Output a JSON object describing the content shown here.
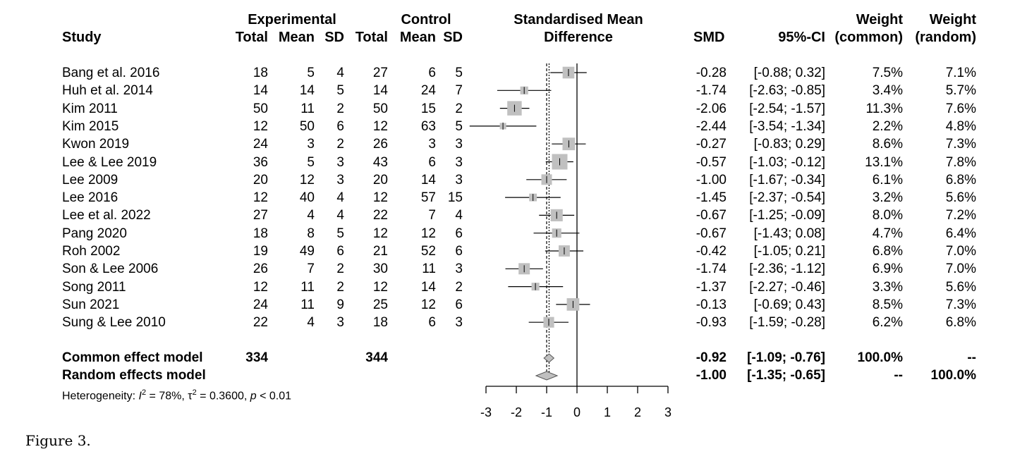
{
  "header": {
    "study": "Study",
    "experimental": "Experimental",
    "control": "Control",
    "total": "Total",
    "mean": "Mean",
    "sd": "SD",
    "plot_title_1": "Standardised Mean",
    "plot_title_2": "Difference",
    "smd": "SMD",
    "ci": "95%-CI",
    "weight": "Weight",
    "common": "(common)",
    "random": "(random)"
  },
  "studies": [
    {
      "name": "Bang et al. 2016",
      "e_total": "18",
      "e_mean": "5",
      "e_sd": "4",
      "c_total": "27",
      "c_mean": "6",
      "c_sd": "5",
      "smd": "-0.28",
      "ci": "[-0.88; 0.32]",
      "w_common": "7.5%",
      "w_random": "7.1%"
    },
    {
      "name": "Huh et al. 2014",
      "e_total": "14",
      "e_mean": "14",
      "e_sd": "5",
      "c_total": "14",
      "c_mean": "24",
      "c_sd": "7",
      "smd": "-1.74",
      "ci": "[-2.63; -0.85]",
      "w_common": "3.4%",
      "w_random": "5.7%"
    },
    {
      "name": "Kim 2011",
      "e_total": "50",
      "e_mean": "11",
      "e_sd": "2",
      "c_total": "50",
      "c_mean": "15",
      "c_sd": "2",
      "smd": "-2.06",
      "ci": "[-2.54; -1.57]",
      "w_common": "11.3%",
      "w_random": "7.6%"
    },
    {
      "name": "Kim 2015",
      "e_total": "12",
      "e_mean": "50",
      "e_sd": "6",
      "c_total": "12",
      "c_mean": "63",
      "c_sd": "5",
      "smd": "-2.44",
      "ci": "[-3.54; -1.34]",
      "w_common": "2.2%",
      "w_random": "4.8%"
    },
    {
      "name": "Kwon 2019",
      "e_total": "24",
      "e_mean": "3",
      "e_sd": "2",
      "c_total": "26",
      "c_mean": "3",
      "c_sd": "3",
      "smd": "-0.27",
      "ci": "[-0.83; 0.29]",
      "w_common": "8.6%",
      "w_random": "7.3%"
    },
    {
      "name": "Lee & Lee 2019",
      "e_total": "36",
      "e_mean": "5",
      "e_sd": "3",
      "c_total": "43",
      "c_mean": "6",
      "c_sd": "3",
      "smd": "-0.57",
      "ci": "[-1.03; -0.12]",
      "w_common": "13.1%",
      "w_random": "7.8%"
    },
    {
      "name": "Lee 2009",
      "e_total": "20",
      "e_mean": "12",
      "e_sd": "3",
      "c_total": "20",
      "c_mean": "14",
      "c_sd": "3",
      "smd": "-1.00",
      "ci": "[-1.67; -0.34]",
      "w_common": "6.1%",
      "w_random": "6.8%"
    },
    {
      "name": "Lee 2016",
      "e_total": "12",
      "e_mean": "40",
      "e_sd": "4",
      "c_total": "12",
      "c_mean": "57",
      "c_sd": "15",
      "smd": "-1.45",
      "ci": "[-2.37; -0.54]",
      "w_common": "3.2%",
      "w_random": "5.6%"
    },
    {
      "name": "Lee et al. 2022",
      "e_total": "27",
      "e_mean": "4",
      "e_sd": "4",
      "c_total": "22",
      "c_mean": "7",
      "c_sd": "4",
      "smd": "-0.67",
      "ci": "[-1.25; -0.09]",
      "w_common": "8.0%",
      "w_random": "7.2%"
    },
    {
      "name": "Pang 2020",
      "e_total": "18",
      "e_mean": "8",
      "e_sd": "5",
      "c_total": "12",
      "c_mean": "12",
      "c_sd": "6",
      "smd": "-0.67",
      "ci": "[-1.43; 0.08]",
      "w_common": "4.7%",
      "w_random": "6.4%"
    },
    {
      "name": "Roh 2002",
      "e_total": "19",
      "e_mean": "49",
      "e_sd": "6",
      "c_total": "21",
      "c_mean": "52",
      "c_sd": "6",
      "smd": "-0.42",
      "ci": "[-1.05; 0.21]",
      "w_common": "6.8%",
      "w_random": "7.0%"
    },
    {
      "name": "Son & Lee 2006",
      "e_total": "26",
      "e_mean": "7",
      "e_sd": "2",
      "c_total": "30",
      "c_mean": "11",
      "c_sd": "3",
      "smd": "-1.74",
      "ci": "[-2.36; -1.12]",
      "w_common": "6.9%",
      "w_random": "7.0%"
    },
    {
      "name": "Song 2011",
      "e_total": "12",
      "e_mean": "11",
      "e_sd": "2",
      "c_total": "12",
      "c_mean": "14",
      "c_sd": "2",
      "smd": "-1.37",
      "ci": "[-2.27; -0.46]",
      "w_common": "3.3%",
      "w_random": "5.6%"
    },
    {
      "name": "Sun 2021",
      "e_total": "24",
      "e_mean": "11",
      "e_sd": "9",
      "c_total": "25",
      "c_mean": "12",
      "c_sd": "6",
      "smd": "-0.13",
      "ci": "[-0.69; 0.43]",
      "w_common": "8.5%",
      "w_random": "7.3%"
    },
    {
      "name": "Sung & Lee 2010",
      "e_total": "22",
      "e_mean": "4",
      "e_sd": "3",
      "c_total": "18",
      "c_mean": "6",
      "c_sd": "3",
      "smd": "-0.93",
      "ci": "[-1.59; -0.28]",
      "w_common": "6.2%",
      "w_random": "6.8%"
    }
  ],
  "summary": [
    {
      "name": "Common effect model",
      "e_total": "334",
      "c_total": "344",
      "smd": "-0.92",
      "ci": "[-1.09; -0.76]",
      "w_common": "100.0%",
      "w_random": "--"
    },
    {
      "name": "Random effects model",
      "e_total": "",
      "c_total": "",
      "smd": "-1.00",
      "ci": "[-1.35; -0.65]",
      "w_common": "--",
      "w_random": "100.0%"
    }
  ],
  "heterogeneity": {
    "prefix": "Heterogeneity: ",
    "i_sym": "I",
    "i_val": " = 78%, ",
    "tau_sym": "τ",
    "tau_val": " = 0.3600, ",
    "p_sym": "p",
    "p_val": " < 0.01",
    "sq": "2"
  },
  "caption": "Figure 3.",
  "chart_data": {
    "type": "forest",
    "xlim": [
      -3,
      3
    ],
    "ticks": [
      -3,
      -2,
      -1,
      0,
      1,
      2,
      3
    ],
    "tick_labels": [
      "-3",
      "-2",
      "-1",
      "0",
      "1",
      "2",
      "3"
    ],
    "null_value": 0,
    "common_estimate": -0.92,
    "random_estimate": -1.0,
    "studies": [
      {
        "smd": -0.28,
        "lo": -0.88,
        "hi": 0.32,
        "weight": 7.5
      },
      {
        "smd": -1.74,
        "lo": -2.63,
        "hi": -0.85,
        "weight": 3.4
      },
      {
        "smd": -2.06,
        "lo": -2.54,
        "hi": -1.57,
        "weight": 11.3
      },
      {
        "smd": -2.44,
        "lo": -3.54,
        "hi": -1.34,
        "weight": 2.2
      },
      {
        "smd": -0.27,
        "lo": -0.83,
        "hi": 0.29,
        "weight": 8.6
      },
      {
        "smd": -0.57,
        "lo": -1.03,
        "hi": -0.12,
        "weight": 13.1
      },
      {
        "smd": -1.0,
        "lo": -1.67,
        "hi": -0.34,
        "weight": 6.1
      },
      {
        "smd": -1.45,
        "lo": -2.37,
        "hi": -0.54,
        "weight": 3.2
      },
      {
        "smd": -0.67,
        "lo": -1.25,
        "hi": -0.09,
        "weight": 8.0
      },
      {
        "smd": -0.67,
        "lo": -1.43,
        "hi": 0.08,
        "weight": 4.7
      },
      {
        "smd": -0.42,
        "lo": -1.05,
        "hi": 0.21,
        "weight": 6.8
      },
      {
        "smd": -1.74,
        "lo": -2.36,
        "hi": -1.12,
        "weight": 6.9
      },
      {
        "smd": -1.37,
        "lo": -2.27,
        "hi": -0.46,
        "weight": 3.3
      },
      {
        "smd": -0.13,
        "lo": -0.69,
        "hi": 0.43,
        "weight": 8.5
      },
      {
        "smd": -0.93,
        "lo": -1.59,
        "hi": -0.28,
        "weight": 6.2
      }
    ],
    "summary": [
      {
        "smd": -0.92,
        "lo": -1.09,
        "hi": -0.76
      },
      {
        "smd": -1.0,
        "lo": -1.35,
        "hi": -0.65
      }
    ],
    "colors": {
      "box": "#c0c0c0",
      "diamond": "#c0c0c0",
      "line": "#000000"
    }
  }
}
